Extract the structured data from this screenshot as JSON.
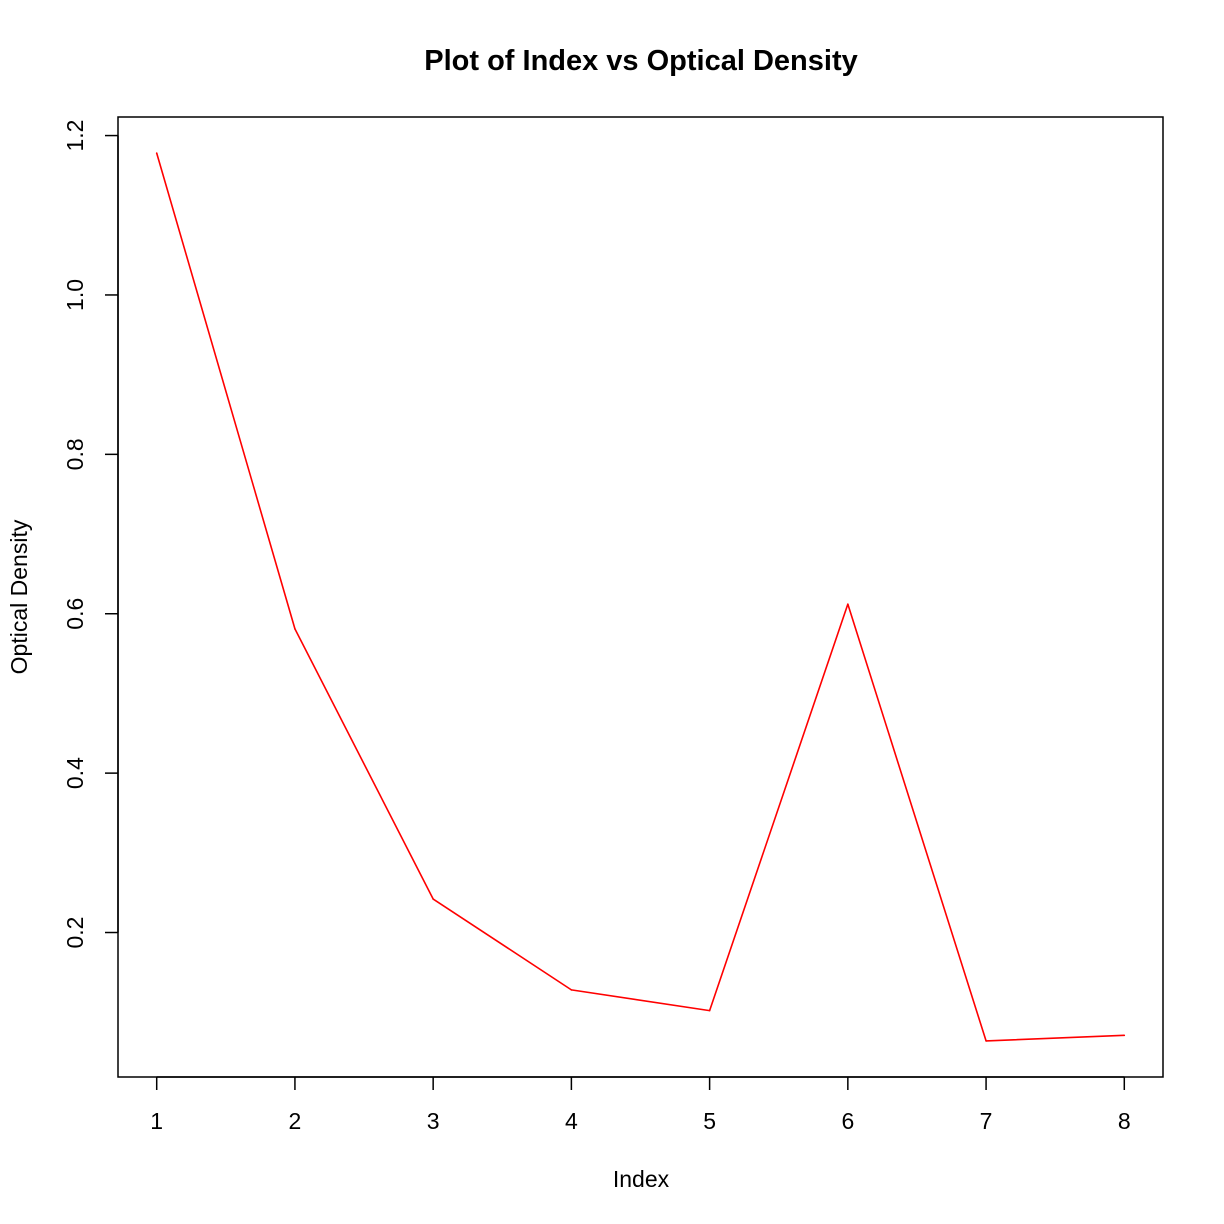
{
  "chart_data": {
    "type": "line",
    "title": "Plot of Index vs Optical Density",
    "xlabel": "Index",
    "ylabel": "Optical Density",
    "x": [
      1,
      2,
      3,
      4,
      5,
      6,
      7,
      8
    ],
    "series": [
      {
        "values": [
          1.178,
          0.581,
          0.242,
          0.128,
          0.102,
          0.612,
          0.064,
          0.071
        ],
        "color": "#ff0000"
      }
    ],
    "xticks": [
      "1",
      "2",
      "3",
      "4",
      "5",
      "6",
      "7",
      "8"
    ],
    "yticks": [
      "0.2",
      "0.4",
      "0.6",
      "0.8",
      "1.0",
      "1.2"
    ],
    "xlim": [
      0.72,
      8.28
    ],
    "ylim": [
      0.0187,
      1.2233
    ],
    "grid": false,
    "legend": "none",
    "frame_color": "#000000"
  }
}
